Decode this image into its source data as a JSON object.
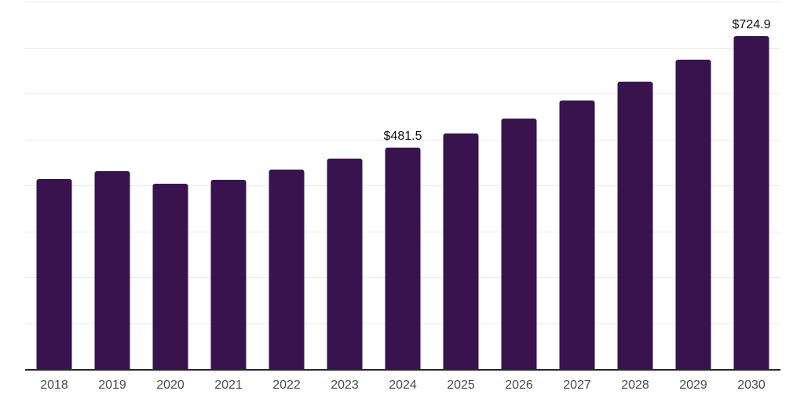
{
  "chart_data": {
    "type": "bar",
    "title": "",
    "xlabel": "",
    "ylabel": "",
    "categories": [
      "2018",
      "2019",
      "2020",
      "2021",
      "2022",
      "2023",
      "2024",
      "2025",
      "2026",
      "2027",
      "2028",
      "2029",
      "2030"
    ],
    "values": [
      413.9,
      431.6,
      402.6,
      411.6,
      433.4,
      457.3,
      481.5,
      512.6,
      545.6,
      583.9,
      625.5,
      673.4,
      724.9
    ],
    "point_labels": [
      "",
      "",
      "",
      "",
      "",
      "",
      "$481.5",
      "",
      "",
      "",
      "",
      "",
      "$724.9"
    ],
    "ylim": [
      0,
      800
    ],
    "gridline_interval": 100,
    "grid": "horizontal-only",
    "legend": "none",
    "y_tick_labels_visible": false
  },
  "colors": {
    "bar_fill": "#38134E",
    "gridline": "#ebebeb",
    "axis_line": "#262626",
    "x_label_text": "#4a4a4a",
    "value_label_text": "#111111",
    "background": "#ffffff"
  }
}
